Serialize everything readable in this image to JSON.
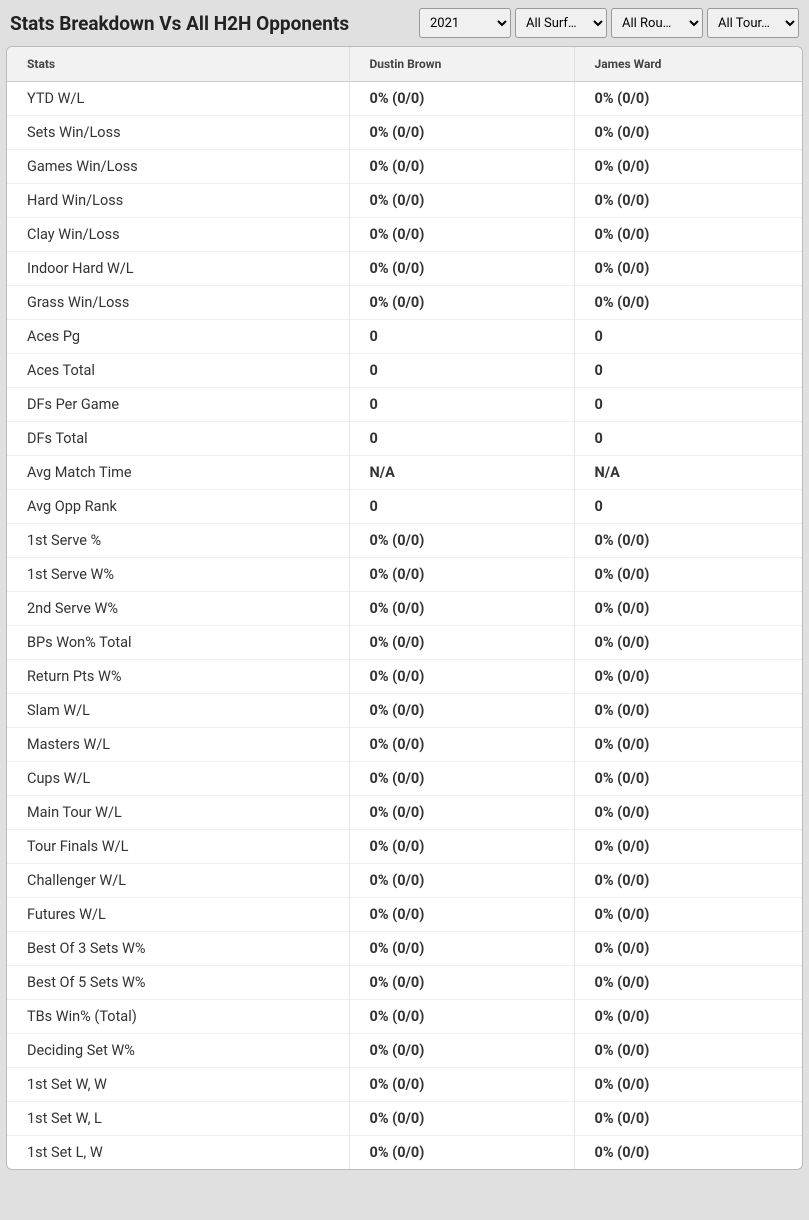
{
  "header": {
    "title": "Stats Breakdown Vs All H2H Opponents"
  },
  "filters": {
    "year": {
      "selected": "2021",
      "options": [
        "2021"
      ]
    },
    "surface": {
      "selected": "All Surf…",
      "options": [
        "All Surf…"
      ]
    },
    "round": {
      "selected": "All Rou…",
      "options": [
        "All Rou…"
      ]
    },
    "tour": {
      "selected": "All Tour…",
      "options": [
        "All Tour…"
      ]
    }
  },
  "table": {
    "columns": {
      "stats": "Stats",
      "player1": "Dustin Brown",
      "player2": "James Ward"
    },
    "rows": [
      {
        "label": "YTD W/L",
        "p1": "0% (0/0)",
        "p2": "0% (0/0)"
      },
      {
        "label": "Sets Win/Loss",
        "p1": "0% (0/0)",
        "p2": "0% (0/0)"
      },
      {
        "label": "Games Win/Loss",
        "p1": "0% (0/0)",
        "p2": "0% (0/0)"
      },
      {
        "label": "Hard Win/Loss",
        "p1": "0% (0/0)",
        "p2": "0% (0/0)"
      },
      {
        "label": "Clay Win/Loss",
        "p1": "0% (0/0)",
        "p2": "0% (0/0)"
      },
      {
        "label": "Indoor Hard W/L",
        "p1": "0% (0/0)",
        "p2": "0% (0/0)"
      },
      {
        "label": "Grass Win/Loss",
        "p1": "0% (0/0)",
        "p2": "0% (0/0)"
      },
      {
        "label": "Aces Pg",
        "p1": "0",
        "p2": "0"
      },
      {
        "label": "Aces Total",
        "p1": "0",
        "p2": "0"
      },
      {
        "label": "DFs Per Game",
        "p1": "0",
        "p2": "0"
      },
      {
        "label": "DFs Total",
        "p1": "0",
        "p2": "0"
      },
      {
        "label": "Avg Match Time",
        "p1": "N/A",
        "p2": "N/A"
      },
      {
        "label": "Avg Opp Rank",
        "p1": "0",
        "p2": "0"
      },
      {
        "label": "1st Serve %",
        "p1": "0% (0/0)",
        "p2": "0% (0/0)"
      },
      {
        "label": "1st Serve W%",
        "p1": "0% (0/0)",
        "p2": "0% (0/0)"
      },
      {
        "label": "2nd Serve W%",
        "p1": "0% (0/0)",
        "p2": "0% (0/0)"
      },
      {
        "label": "BPs Won% Total",
        "p1": "0% (0/0)",
        "p2": "0% (0/0)"
      },
      {
        "label": "Return Pts W%",
        "p1": "0% (0/0)",
        "p2": "0% (0/0)"
      },
      {
        "label": "Slam W/L",
        "p1": "0% (0/0)",
        "p2": "0% (0/0)"
      },
      {
        "label": "Masters W/L",
        "p1": "0% (0/0)",
        "p2": "0% (0/0)"
      },
      {
        "label": "Cups W/L",
        "p1": "0% (0/0)",
        "p2": "0% (0/0)"
      },
      {
        "label": "Main Tour W/L",
        "p1": "0% (0/0)",
        "p2": "0% (0/0)"
      },
      {
        "label": "Tour Finals W/L",
        "p1": "0% (0/0)",
        "p2": "0% (0/0)"
      },
      {
        "label": "Challenger W/L",
        "p1": "0% (0/0)",
        "p2": "0% (0/0)"
      },
      {
        "label": "Futures W/L",
        "p1": "0% (0/0)",
        "p2": "0% (0/0)"
      },
      {
        "label": "Best Of 3 Sets W%",
        "p1": "0% (0/0)",
        "p2": "0% (0/0)"
      },
      {
        "label": "Best Of 5 Sets W%",
        "p1": "0% (0/0)",
        "p2": "0% (0/0)"
      },
      {
        "label": "TBs Win% (Total)",
        "p1": "0% (0/0)",
        "p2": "0% (0/0)"
      },
      {
        "label": "Deciding Set W%",
        "p1": "0% (0/0)",
        "p2": "0% (0/0)"
      },
      {
        "label": "1st Set W, W",
        "p1": "0% (0/0)",
        "p2": "0% (0/0)"
      },
      {
        "label": "1st Set W, L",
        "p1": "0% (0/0)",
        "p2": "0% (0/0)"
      },
      {
        "label": "1st Set L, W",
        "p1": "0% (0/0)",
        "p2": "0% (0/0)"
      }
    ]
  }
}
